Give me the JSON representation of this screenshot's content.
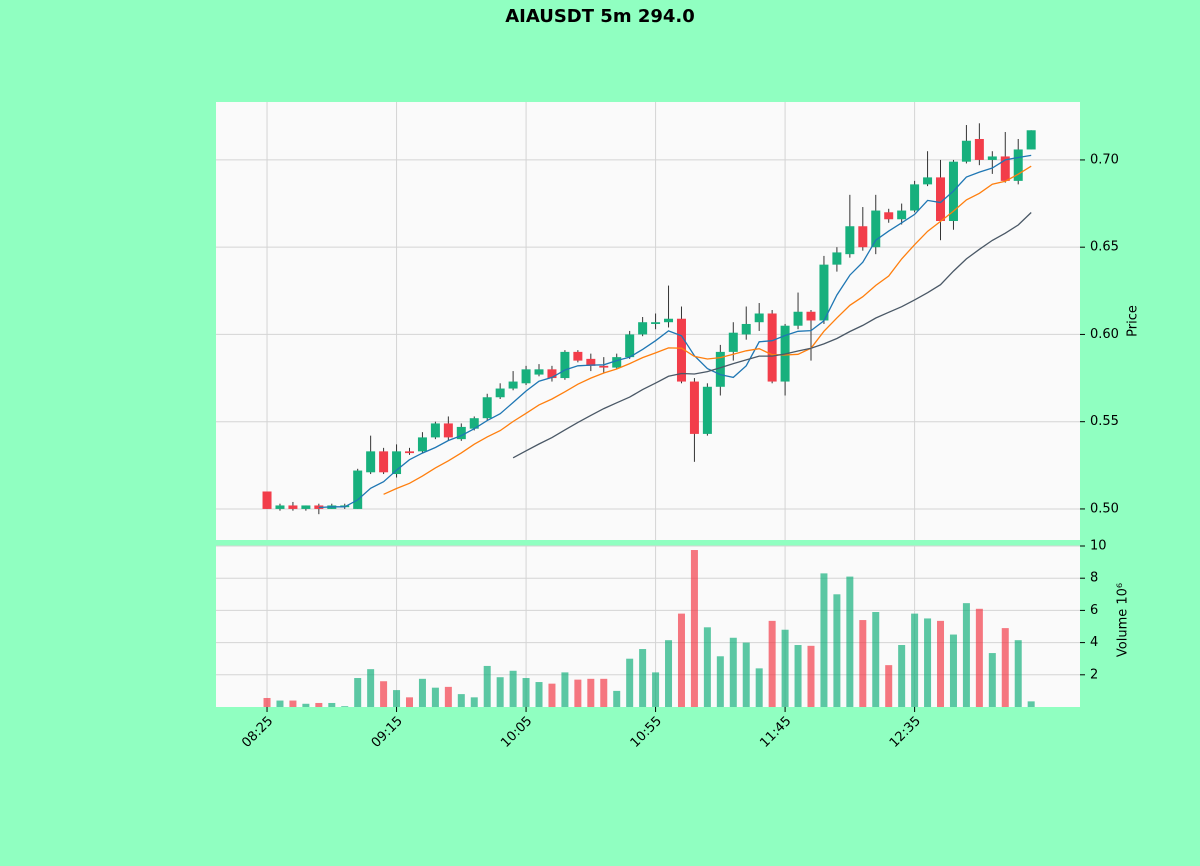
{
  "chart_data": {
    "type": "candlestick",
    "title": "AIAUSDT 5m 294.0",
    "ylabel": "Price",
    "y2label": "Volume  10⁶",
    "categories": [
      "08:25",
      null,
      null,
      null,
      null,
      null,
      null,
      null,
      null,
      null,
      "09:15",
      null,
      null,
      null,
      null,
      null,
      null,
      null,
      null,
      null,
      "10:05",
      null,
      null,
      null,
      null,
      null,
      null,
      null,
      null,
      null,
      "10:55",
      null,
      null,
      null,
      null,
      null,
      null,
      null,
      null,
      null,
      "11:45",
      null,
      null,
      null,
      null,
      null,
      null,
      null,
      null,
      null,
      "12:35",
      null,
      null,
      null,
      null,
      null,
      null,
      null,
      null,
      null
    ],
    "open": [
      0.51,
      0.5,
      0.502,
      0.5,
      0.502,
      0.5,
      0.501,
      0.5,
      0.521,
      0.533,
      0.52,
      0.533,
      0.533,
      0.541,
      0.549,
      0.54,
      0.546,
      0.552,
      0.564,
      0.569,
      0.572,
      0.577,
      0.58,
      0.575,
      0.59,
      0.586,
      0.582,
      0.581,
      0.587,
      0.6,
      0.606,
      0.607,
      0.609,
      0.573,
      0.543,
      0.57,
      0.59,
      0.6,
      0.607,
      0.612,
      0.573,
      0.605,
      0.613,
      0.608,
      0.64,
      0.646,
      0.662,
      0.65,
      0.67,
      0.666,
      0.671,
      0.686,
      0.69,
      0.665,
      0.699,
      0.712,
      0.7,
      0.702,
      0.688,
      0.706
    ],
    "high": [
      0.51,
      0.503,
      0.504,
      0.502,
      0.503,
      0.503,
      0.503,
      0.523,
      0.542,
      0.535,
      0.537,
      0.535,
      0.544,
      0.55,
      0.553,
      0.549,
      0.553,
      0.566,
      0.572,
      0.579,
      0.582,
      0.583,
      0.582,
      0.591,
      0.591,
      0.589,
      0.587,
      0.589,
      0.602,
      0.61,
      0.612,
      0.628,
      0.616,
      0.575,
      0.572,
      0.594,
      0.607,
      0.616,
      0.618,
      0.614,
      0.606,
      0.624,
      0.614,
      0.645,
      0.65,
      0.68,
      0.673,
      0.68,
      0.672,
      0.675,
      0.688,
      0.705,
      0.7,
      0.7,
      0.72,
      0.721,
      0.705,
      0.716,
      0.712,
      0.717
    ],
    "low": [
      0.5,
      0.499,
      0.499,
      0.499,
      0.497,
      0.5,
      0.5,
      0.5,
      0.52,
      0.52,
      0.518,
      0.531,
      0.532,
      0.54,
      0.539,
      0.539,
      0.545,
      0.551,
      0.563,
      0.568,
      0.571,
      0.576,
      0.573,
      0.574,
      0.584,
      0.579,
      0.578,
      0.58,
      0.586,
      0.599,
      0.603,
      0.604,
      0.572,
      0.527,
      0.542,
      0.565,
      0.585,
      0.597,
      0.602,
      0.572,
      0.565,
      0.603,
      0.585,
      0.606,
      0.636,
      0.644,
      0.648,
      0.646,
      0.664,
      0.663,
      0.67,
      0.685,
      0.654,
      0.66,
      0.698,
      0.697,
      0.692,
      0.687,
      0.686,
      0.706
    ],
    "close": [
      0.5,
      0.502,
      0.5,
      0.502,
      0.5,
      0.502,
      0.502,
      0.522,
      0.533,
      0.521,
      0.533,
      0.532,
      0.541,
      0.549,
      0.541,
      0.547,
      0.552,
      0.564,
      0.569,
      0.573,
      0.58,
      0.58,
      0.575,
      0.59,
      0.585,
      0.582,
      0.581,
      0.587,
      0.6,
      0.607,
      0.607,
      0.609,
      0.573,
      0.543,
      0.57,
      0.59,
      0.601,
      0.606,
      0.612,
      0.573,
      0.605,
      0.613,
      0.608,
      0.64,
      0.647,
      0.662,
      0.65,
      0.671,
      0.666,
      0.671,
      0.686,
      0.69,
      0.665,
      0.699,
      0.711,
      0.7,
      0.702,
      0.688,
      0.706,
      0.717
    ],
    "volume": [
      0.56,
      0.4,
      0.4,
      0.2,
      0.25,
      0.25,
      0.05,
      1.8,
      2.35,
      1.6,
      1.05,
      0.6,
      1.75,
      1.2,
      1.25,
      0.8,
      0.6,
      2.55,
      1.85,
      2.25,
      1.8,
      1.55,
      1.45,
      2.15,
      1.7,
      1.75,
      1.75,
      1.0,
      3.0,
      3.6,
      2.15,
      4.15,
      5.8,
      9.75,
      4.95,
      3.15,
      4.3,
      4.0,
      2.4,
      5.35,
      4.8,
      3.85,
      3.8,
      8.3,
      7.0,
      8.1,
      5.4,
      5.9,
      2.6,
      3.85,
      5.8,
      5.5,
      5.35,
      4.5,
      6.45,
      6.1,
      3.35,
      4.9,
      4.15,
      0.35
    ],
    "up_color": "#17b07d",
    "down_color": "#f23d4a",
    "moving_averages": [
      {
        "color": "#1f77b4",
        "values": [
          null,
          null,
          null,
          null,
          0.5008,
          0.5012,
          0.5012,
          0.5052,
          0.5118,
          0.5156,
          0.5222,
          0.5282,
          0.532,
          0.5352,
          0.5392,
          0.542,
          0.546,
          0.5506,
          0.5546,
          0.561,
          0.5676,
          0.5732,
          0.5754,
          0.5796,
          0.582,
          0.5824,
          0.5826,
          0.585,
          0.587,
          0.5914,
          0.5964,
          0.602,
          0.5992,
          0.5878,
          0.5804,
          0.577,
          0.5754,
          0.582,
          0.5958,
          0.5964,
          0.5994,
          0.6018,
          0.6022,
          0.6078,
          0.6226,
          0.634,
          0.6414,
          0.654,
          0.6592,
          0.664,
          0.6688,
          0.6768,
          0.6756,
          0.6822,
          0.6902,
          0.693,
          0.6954,
          0.7,
          0.7014,
          0.7026
        ]
      },
      {
        "color": "#ff7f0e",
        "values": [
          null,
          null,
          null,
          null,
          null,
          null,
          null,
          null,
          null,
          0.5084,
          0.5117,
          0.5147,
          0.5188,
          0.5235,
          0.5276,
          0.5321,
          0.5371,
          0.5413,
          0.5449,
          0.5501,
          0.5548,
          0.5596,
          0.563,
          0.5671,
          0.5715,
          0.575,
          0.5779,
          0.5802,
          0.5833,
          0.5867,
          0.5894,
          0.5923,
          0.5921,
          0.5874,
          0.5859,
          0.5867,
          0.5887,
          0.5906,
          0.5918,
          0.5884,
          0.5882,
          0.5886,
          0.5921,
          0.6018,
          0.6095,
          0.6167,
          0.6216,
          0.6281,
          0.6335,
          0.6433,
          0.6514,
          0.6591,
          0.6648,
          0.6707,
          0.6771,
          0.6809,
          0.6861,
          0.6878,
          0.6918,
          0.6964
        ]
      },
      {
        "color": "#4a5866",
        "values": [
          null,
          null,
          null,
          null,
          null,
          null,
          null,
          null,
          null,
          null,
          null,
          null,
          null,
          null,
          null,
          null,
          null,
          null,
          null,
          0.5293,
          0.5333,
          0.5372,
          0.5409,
          0.5453,
          0.5496,
          0.5536,
          0.5575,
          0.5608,
          0.5641,
          0.5684,
          0.5721,
          0.576,
          0.5776,
          0.5773,
          0.5787,
          0.5809,
          0.5833,
          0.5854,
          0.5876,
          0.5876,
          0.5888,
          0.5905,
          0.5921,
          0.5946,
          0.5977,
          0.6017,
          0.6052,
          0.6094,
          0.6127,
          0.6159,
          0.6198,
          0.6239,
          0.6285,
          0.6363,
          0.6433,
          0.6488,
          0.6539,
          0.658,
          0.6627,
          0.6699
        ]
      }
    ],
    "xlim": [
      -3.94,
      62.77
    ],
    "ylim": [
      0.4822,
      0.7332
    ],
    "yticks": [
      {
        "value": 0.5,
        "label": "0.50"
      },
      0.55,
      {
        "value": 0.6,
        "label": "0.60"
      },
      0.65,
      {
        "value": 0.7,
        "label": "0.70"
      }
    ],
    "y2lim": [
      0,
      10
    ],
    "y2ticks": [
      2,
      4,
      6,
      8,
      10
    ],
    "grid": true
  }
}
